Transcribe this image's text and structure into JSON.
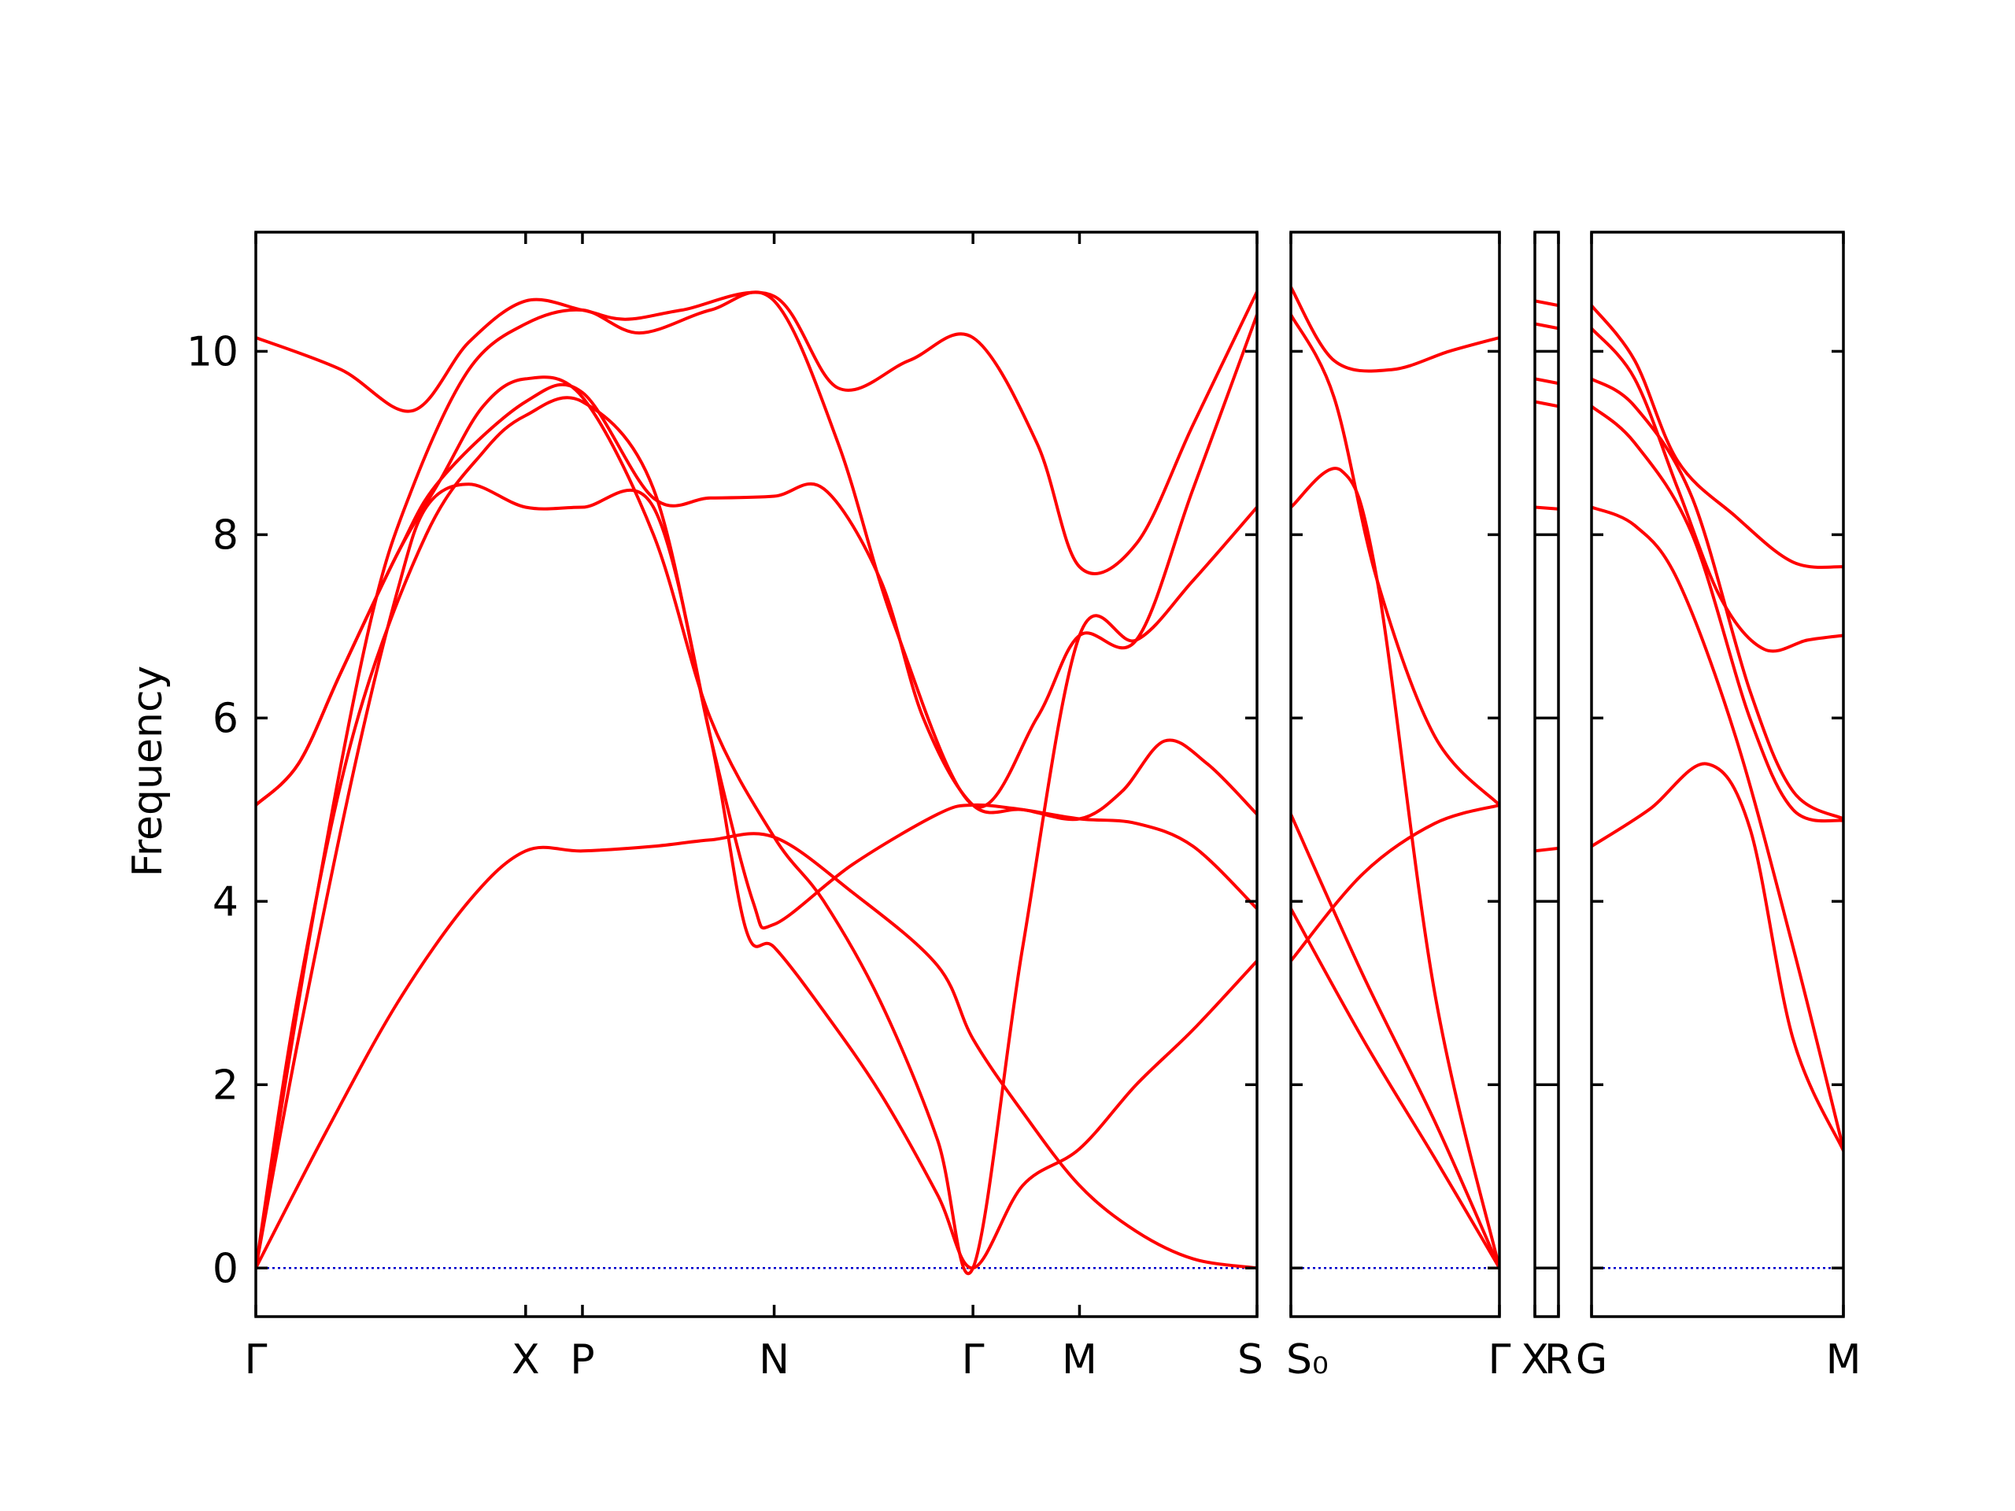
{
  "chart_data": {
    "type": "line",
    "ylabel": "Frequency",
    "ylim": [
      -0.53,
      11.3
    ],
    "yticks": [
      "0",
      "2",
      "4",
      "6",
      "8",
      "10"
    ],
    "colors": {
      "bands": "#ff0000",
      "zero_line": "#0000cc",
      "axes": "#000000"
    },
    "grid": false,
    "panels": [
      {
        "xlim": [
          0,
          7.05
        ],
        "ticks": [
          {
            "x": 0,
            "label": "Γ"
          },
          {
            "x": 1.9,
            "label": "X"
          },
          {
            "x": 2.3,
            "label": "P"
          },
          {
            "x": 3.65,
            "label": "N"
          },
          {
            "x": 5.05,
            "label": "Γ"
          },
          {
            "x": 5.8,
            "label": "M"
          },
          {
            "x": 7.05,
            "label": "S"
          }
        ],
        "series": [
          {
            "x": [
              0,
              0.5,
              1.0,
              1.5,
              1.9,
              2.3,
              2.8,
              3.2,
              3.65,
              4.2,
              4.8,
              5.05,
              5.4,
              5.8,
              6.2,
              6.6,
              7.05
            ],
            "y": [
              0,
              1.5,
              2.9,
              4.0,
              4.55,
              4.55,
              4.6,
              4.67,
              4.7,
              4.1,
              3.3,
              2.5,
              1.7,
              0.9,
              0.4,
              0.1,
              0.0
            ]
          },
          {
            "x": [
              0,
              0.3,
              0.7,
              1.2,
              1.6,
              1.9,
              2.3,
              2.8,
              3.2,
              3.5,
              3.65,
              4.2,
              4.8,
              5.05,
              5.4,
              5.8,
              6.1,
              6.4,
              6.7,
              7.05
            ],
            "y": [
              0,
              3.0,
              5.9,
              8.0,
              8.9,
              9.3,
              9.45,
              8.5,
              5.8,
              4.0,
              3.75,
              4.4,
              4.95,
              5.05,
              5.0,
              4.9,
              5.2,
              5.75,
              5.5,
              4.95
            ]
          },
          {
            "x": [
              0,
              0.3,
              0.7,
              1.0,
              1.2,
              1.5,
              1.9,
              2.3,
              2.8,
              3.2,
              3.45,
              3.65,
              4.0,
              4.4,
              4.8,
              5.05,
              5.4,
              5.8,
              6.2,
              6.6,
              7.05
            ],
            "y": [
              0,
              2.5,
              5.5,
              7.4,
              8.3,
              8.55,
              8.3,
              8.3,
              8.3,
              5.8,
              3.7,
              3.5,
              2.8,
              1.9,
              0.8,
              0.0,
              0.9,
              1.3,
              2.0,
              2.6,
              3.35
            ]
          },
          {
            "x": [
              0,
              0.3,
              0.6,
              1.0,
              1.3,
              1.9,
              2.3,
              2.8,
              3.2,
              3.65,
              4.0,
              4.4,
              4.7,
              5.05,
              5.4,
              5.8,
              6.2,
              6.6,
              7.05
            ],
            "y": [
              5.05,
              5.5,
              6.5,
              7.8,
              8.6,
              9.45,
              9.55,
              8.4,
              8.4,
              8.42,
              8.5,
              7.5,
              6.0,
              5.05,
              5.0,
              4.9,
              4.85,
              4.6,
              3.92
            ]
          },
          {
            "x": [
              0,
              0.3,
              0.6,
              1.0,
              1.3,
              1.6,
              1.9,
              2.3,
              2.8,
              3.2,
              3.65,
              4.0,
              4.4,
              4.8,
              5.05,
              5.4,
              5.8,
              6.2,
              6.6,
              7.05
            ],
            "y": [
              5.05,
              5.5,
              6.5,
              7.8,
              8.6,
              9.4,
              9.7,
              9.5,
              8.0,
              6.0,
              4.7,
              4.0,
              2.9,
              1.4,
              0.0,
              3.5,
              6.9,
              6.85,
              7.5,
              8.3
            ]
          },
          {
            "x": [
              0,
              0.4,
              0.8,
              1.1,
              1.5,
              1.9,
              2.3,
              2.7,
              3.2,
              3.65,
              4.1,
              4.5,
              5.05,
              5.5,
              5.8,
              6.2,
              6.6,
              7.05
            ],
            "y": [
              0,
              3.8,
              7.0,
              8.5,
              9.8,
              10.3,
              10.45,
              10.2,
              10.45,
              10.55,
              9.0,
              7.0,
              5.05,
              6.0,
              6.9,
              6.85,
              8.5,
              10.4
            ]
          },
          {
            "x": [
              0,
              0.6,
              1.1,
              1.5,
              1.9,
              2.3,
              2.6,
              3.0,
              3.65,
              4.1,
              4.6,
              5.05,
              5.5,
              5.8,
              6.2,
              6.6,
              7.05
            ],
            "y": [
              10.15,
              9.8,
              9.35,
              10.1,
              10.55,
              10.45,
              10.35,
              10.45,
              10.6,
              9.6,
              9.9,
              10.15,
              9.0,
              7.65,
              7.9,
              9.2,
              10.65
            ]
          }
        ]
      },
      {
        "xlim": [
          0,
          1.45
        ],
        "ticks": [
          {
            "x": 0,
            "label": "S₀"
          },
          {
            "x": 1.45,
            "label": "Γ"
          }
        ],
        "series": [
          {
            "x": [
              0,
              0.3,
              0.7,
              1.1,
              1.45
            ],
            "y": [
              10.7,
              9.9,
              9.8,
              10.0,
              10.15
            ]
          },
          {
            "x": [
              0,
              0.3,
              0.6,
              1.0,
              1.45
            ],
            "y": [
              10.4,
              9.5,
              7.5,
              5.8,
              5.05
            ]
          },
          {
            "x": [
              0,
              0.35,
              0.6,
              1.0,
              1.45
            ],
            "y": [
              8.3,
              8.7,
              7.5,
              3.0,
              0.0
            ]
          },
          {
            "x": [
              0,
              0.5,
              1.0,
              1.45
            ],
            "y": [
              4.95,
              3.2,
              1.6,
              0.0
            ]
          },
          {
            "x": [
              0,
              0.5,
              1.0,
              1.45
            ],
            "y": [
              3.92,
              2.5,
              1.2,
              0.0
            ]
          },
          {
            "x": [
              0,
              0.5,
              1.0,
              1.45
            ],
            "y": [
              3.35,
              4.3,
              4.85,
              5.05
            ]
          }
        ]
      },
      {
        "xlim": [
          0,
          0.15
        ],
        "ticks": [
          {
            "x": 0,
            "label": "X"
          },
          {
            "x": 0.15,
            "label": "R"
          }
        ],
        "series": [
          {
            "x": [
              0,
              0.15
            ],
            "y": [
              10.55,
              10.5
            ]
          },
          {
            "x": [
              0,
              0.15
            ],
            "y": [
              10.3,
              10.25
            ]
          },
          {
            "x": [
              0,
              0.15
            ],
            "y": [
              9.7,
              9.65
            ]
          },
          {
            "x": [
              0,
              0.15
            ],
            "y": [
              9.45,
              9.4
            ]
          },
          {
            "x": [
              0,
              0.15
            ],
            "y": [
              8.3,
              8.28
            ]
          },
          {
            "x": [
              0,
              0.15
            ],
            "y": [
              4.55,
              4.58
            ]
          }
        ]
      },
      {
        "xlim": [
          0,
          1.75
        ],
        "ticks": [
          {
            "x": 0,
            "label": "G"
          },
          {
            "x": 1.75,
            "label": "M"
          }
        ],
        "series": [
          {
            "x": [
              0,
              0.3,
              0.6,
              1.0,
              1.4,
              1.75
            ],
            "y": [
              10.5,
              9.9,
              8.8,
              8.2,
              7.7,
              7.65
            ]
          },
          {
            "x": [
              0,
              0.3,
              0.6,
              0.9,
              1.2,
              1.5,
              1.75
            ],
            "y": [
              10.25,
              9.7,
              8.5,
              7.3,
              6.75,
              6.85,
              6.9
            ]
          },
          {
            "x": [
              0,
              0.3,
              0.7,
              1.1,
              1.4,
              1.75
            ],
            "y": [
              9.7,
              9.4,
              8.4,
              6.3,
              5.2,
              4.9
            ]
          },
          {
            "x": [
              0,
              0.3,
              0.7,
              1.1,
              1.4,
              1.75
            ],
            "y": [
              9.4,
              9.0,
              8.0,
              6.0,
              5.0,
              4.88
            ]
          },
          {
            "x": [
              0,
              0.3,
              0.6,
              1.0,
              1.4,
              1.75
            ],
            "y": [
              8.3,
              8.1,
              7.5,
              5.8,
              3.5,
              1.3
            ]
          },
          {
            "x": [
              0,
              0.4,
              0.8,
              1.1,
              1.4,
              1.75
            ],
            "y": [
              4.6,
              5.0,
              5.5,
              4.8,
              2.5,
              1.28
            ]
          }
        ]
      }
    ]
  }
}
